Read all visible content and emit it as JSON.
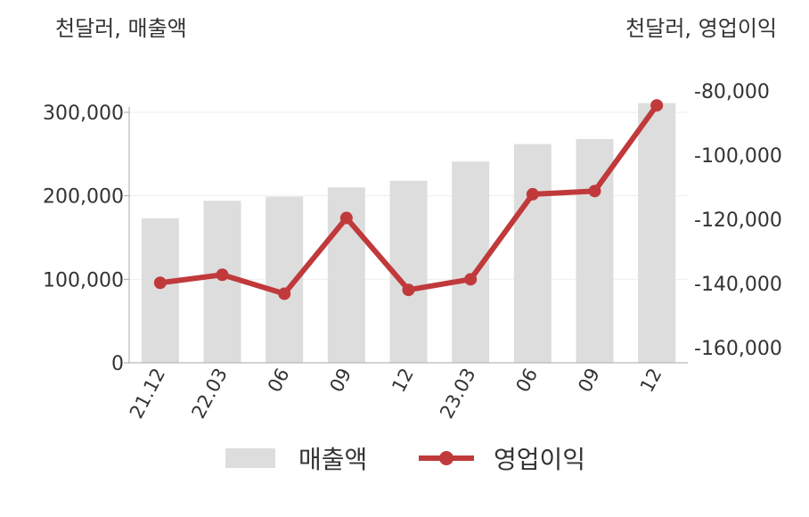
{
  "unit_left": "천달러, 매출액",
  "unit_right": "천달러, 영업이익",
  "legend": {
    "bar_label": "매출액",
    "line_label": "영업이익"
  },
  "colors": {
    "bar": "#dddddd",
    "line": "#c0393b",
    "axis": "#aaaaaa",
    "grid": "#eeeeee",
    "text": "#333333"
  },
  "chart_data": {
    "type": "bar",
    "categories": [
      "21.12",
      "22.03",
      "06",
      "09",
      "12",
      "23.03",
      "06",
      "09",
      "12"
    ],
    "series": [
      {
        "name": "매출액",
        "type": "bar",
        "axis": "left",
        "values": [
          173000,
          194000,
          199000,
          210000,
          218000,
          241000,
          262000,
          268000,
          311000
        ]
      },
      {
        "name": "영업이익",
        "type": "line",
        "axis": "right",
        "values": [
          -139800,
          -137300,
          -143200,
          -119600,
          -142000,
          -138700,
          -112200,
          -111200,
          -84500
        ]
      }
    ],
    "left_axis": {
      "ylim": [
        0,
        300000
      ],
      "ticks": [
        0,
        100000,
        200000,
        300000
      ],
      "tick_labels": [
        "0",
        "100,000",
        "200,000",
        "300,000"
      ]
    },
    "right_axis": {
      "ylim": [
        -160000,
        -80000
      ],
      "ticks": [
        -160000,
        -140000,
        -120000,
        -100000,
        -80000
      ],
      "tick_labels": [
        "-160,000",
        "-140,000",
        "-120,000",
        "-100,000",
        "-80,000"
      ]
    },
    "grid": true,
    "legend_position": "bottom"
  }
}
